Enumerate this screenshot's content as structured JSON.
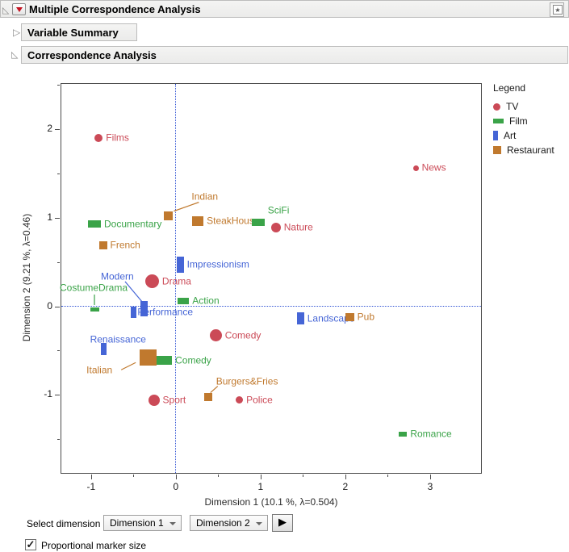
{
  "header": {
    "title": "Multiple Correspondence Analysis"
  },
  "sections": [
    {
      "label": "Variable Summary",
      "state": "collapsed"
    },
    {
      "label": "Correspondence Analysis",
      "state": "expanded"
    }
  ],
  "controls": {
    "select_dimension": "Select dimension",
    "dim1": "Dimension 1",
    "dim2": "Dimension 2",
    "go_arrow": "▶",
    "proportional": "Proportional marker size",
    "proportional_checked": true
  },
  "chart_data": {
    "type": "scatter",
    "xlabel": "Dimension 1  (10.1 %, λ=0.504)",
    "ylabel": "Dimension 2  (9.21 %, λ=0.46)",
    "xlim": [
      -1.36,
      3.61
    ],
    "ylim": [
      -1.89,
      2.52
    ],
    "x_major_ticks": [
      -1,
      0,
      1,
      2,
      3
    ],
    "x_minor_ticks": [
      -0.5,
      0.5,
      1.5,
      2.5
    ],
    "y_major_ticks": [
      2,
      1,
      0,
      -1
    ],
    "y_minor_ticks": [
      2.5,
      1.5,
      0.5,
      -0.5,
      -1.5
    ],
    "reference_lines": {
      "x": 0,
      "y": 0,
      "color": "#3355d4"
    },
    "grid": false,
    "legend": {
      "title": "Legend",
      "position": "right",
      "entries": [
        {
          "name": "TV",
          "color": "#cb4a57",
          "marker": "circle",
          "w": 9,
          "h": 9
        },
        {
          "name": "Film",
          "color": "#3aa348",
          "marker": "hbar",
          "w": 13,
          "h": 6
        },
        {
          "name": "Art",
          "color": "#4565d6",
          "marker": "vbar",
          "w": 6,
          "h": 12
        },
        {
          "name": "Restaurant",
          "color": "#c0792e",
          "marker": "square",
          "w": 10,
          "h": 10
        }
      ]
    },
    "series": [
      {
        "name": "TV",
        "marker": "circle",
        "color": "#cb4a57",
        "points": [
          {
            "label": "Films",
            "x": -0.91,
            "y": 1.9,
            "mw": 10,
            "mh": 10
          },
          {
            "label": "News",
            "x": 2.83,
            "y": 1.56,
            "mw": 7,
            "mh": 7
          },
          {
            "label": "Drama",
            "x": -0.28,
            "y": 0.28,
            "mw": 17,
            "mh": 17
          },
          {
            "label": "Nature",
            "x": 1.18,
            "y": 0.89,
            "mw": 12,
            "mh": 12
          },
          {
            "label": "Comedy",
            "x": 0.47,
            "y": -0.33,
            "mw": 15,
            "mh": 15
          },
          {
            "label": "Sport",
            "x": -0.26,
            "y": -1.06,
            "mw": 14,
            "mh": 14
          },
          {
            "label": "Police",
            "x": 0.75,
            "y": -1.06,
            "mw": 9,
            "mh": 9
          }
        ]
      },
      {
        "name": "Film",
        "marker": "hbar",
        "color": "#3aa348",
        "points": [
          {
            "label": "Documentary",
            "x": -0.96,
            "y": 0.93,
            "mw": 16,
            "mh": 9
          },
          {
            "label": "SciFi",
            "x": 0.97,
            "y": 0.95,
            "mw": 16,
            "mh": 9,
            "ldx": 12,
            "ldy": -14
          },
          {
            "label": "CostumeDrama",
            "x": -0.96,
            "y": -0.04,
            "mw": 11,
            "mh": 5,
            "ldx": -43,
            "ldy": -27,
            "leader": [
              0,
              -19,
              0,
              -6
            ]
          },
          {
            "label": "Action",
            "x": 0.09,
            "y": 0.06,
            "mw": 14,
            "mh": 8
          },
          {
            "label": "Comedy",
            "x": -0.14,
            "y": -0.61,
            "mw": 20,
            "mh": 11
          },
          {
            "label": "Romance",
            "x": 2.68,
            "y": -1.44,
            "mw": 10,
            "mh": 6
          }
        ]
      },
      {
        "name": "Art",
        "marker": "vbar",
        "color": "#4565d6",
        "points": [
          {
            "label": "Performance",
            "x": -0.5,
            "y": -0.07,
            "mw": 7,
            "mh": 14,
            "ldx": 5,
            "ldy": 0
          },
          {
            "label": "Impressionism",
            "x": 0.05,
            "y": 0.47,
            "mw": 9,
            "mh": 20
          },
          {
            "label": "Modern",
            "x": -0.37,
            "y": -0.03,
            "mw": 9,
            "mh": 19,
            "ldx": -54,
            "ldy": -40,
            "leader": [
              -24,
              -34,
              -3,
              -9
            ]
          },
          {
            "label": "Renaissance",
            "x": -0.85,
            "y": -0.48,
            "mw": 7,
            "mh": 15,
            "ldx": -17,
            "ldy": -11
          },
          {
            "label": "Landscape",
            "x": 1.47,
            "y": -0.14,
            "mw": 9,
            "mh": 15
          }
        ]
      },
      {
        "name": "Restaurant",
        "marker": "square",
        "color": "#c0792e",
        "points": [
          {
            "label": "Indian",
            "x": -0.09,
            "y": 1.02,
            "mw": 11,
            "mh": 11,
            "ldx": 29,
            "ldy": -24,
            "leader": [
              38,
              -17,
              7,
              -6
            ]
          },
          {
            "label": "SteakHouse",
            "x": 0.26,
            "y": 0.96,
            "mw": 14,
            "mh": 12
          },
          {
            "label": "French",
            "x": -0.86,
            "y": 0.69,
            "mw": 10,
            "mh": 10
          },
          {
            "label": "Pub",
            "x": 2.05,
            "y": -0.12,
            "mw": 11,
            "mh": 10
          },
          {
            "label": "Italian",
            "x": -0.33,
            "y": -0.58,
            "mw": 21,
            "mh": 20,
            "ldx": -76,
            "ldy": 16,
            "leader": [
              -33,
              15,
              -15,
              6
            ]
          },
          {
            "label": "Burgers&Fries",
            "x": 0.38,
            "y": -1.02,
            "mw": 10,
            "mh": 10,
            "ldx": 10,
            "ldy": -19,
            "leader": [
              12,
              -13,
              3,
              -5
            ]
          }
        ]
      }
    ]
  }
}
